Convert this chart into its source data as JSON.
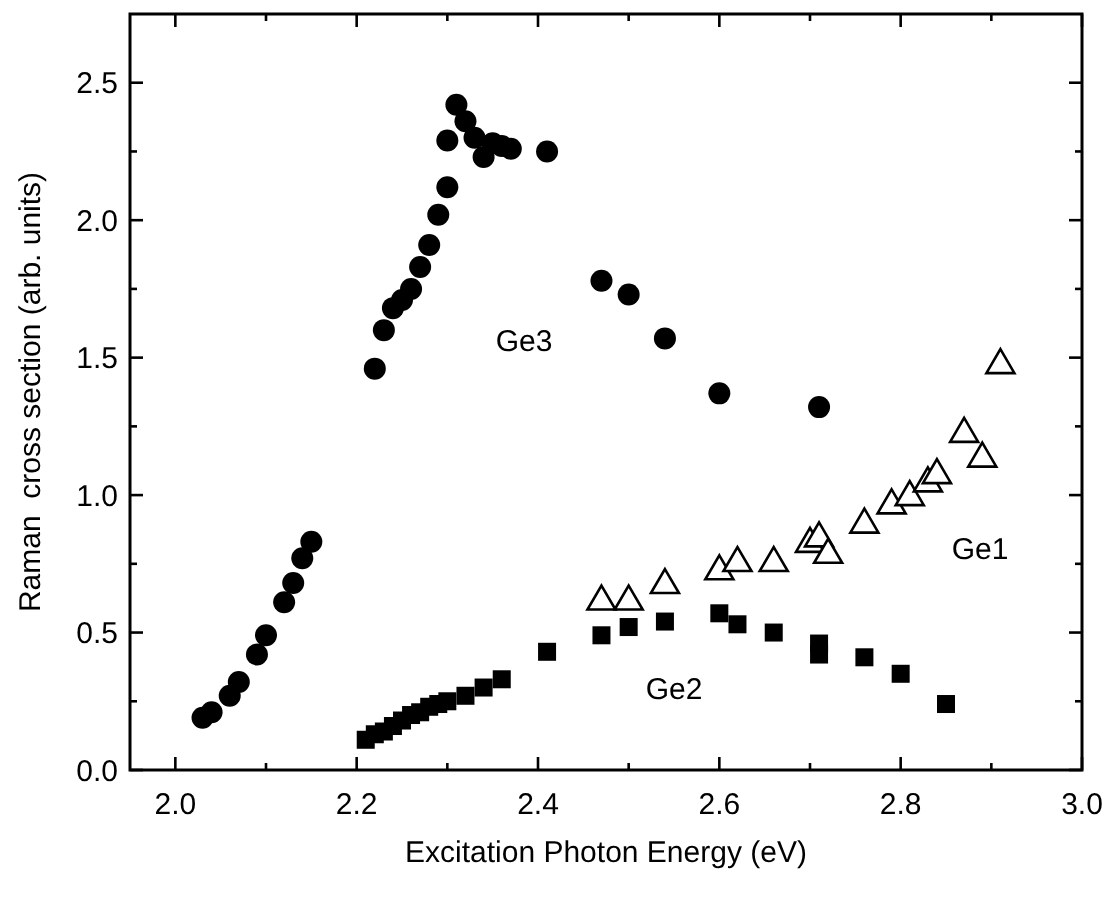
{
  "chart_data": {
    "type": "scatter",
    "xlabel": "Excitation Photon Energy (eV)",
    "ylabel": "Raman  cross section (arb. units)",
    "xlim": [
      1.95,
      3.0
    ],
    "ylim": [
      0,
      2.75
    ],
    "xticks": [
      {
        "value": 2.0,
        "label": "2.0"
      },
      {
        "value": 2.1,
        "label": null
      },
      {
        "value": 2.2,
        "label": "2.2"
      },
      {
        "value": 2.3,
        "label": null
      },
      {
        "value": 2.4,
        "label": "2.4"
      },
      {
        "value": 2.5,
        "label": null
      },
      {
        "value": 2.6,
        "label": "2.6"
      },
      {
        "value": 2.7,
        "label": null
      },
      {
        "value": 2.8,
        "label": "2.8"
      },
      {
        "value": 2.9,
        "label": null
      },
      {
        "value": 3.0,
        "label": "3.0"
      }
    ],
    "yticks": [
      {
        "value": 0,
        "label": "0.0"
      },
      {
        "value": 0.25,
        "label": null
      },
      {
        "value": 0.5,
        "label": "0.5"
      },
      {
        "value": 0.75,
        "label": null
      },
      {
        "value": 1.0,
        "label": "1.0"
      },
      {
        "value": 1.25,
        "label": null
      },
      {
        "value": 1.5,
        "label": "1.5"
      },
      {
        "value": 1.75,
        "label": null
      },
      {
        "value": 2.0,
        "label": "2.0"
      },
      {
        "value": 2.25,
        "label": null
      },
      {
        "value": 2.5,
        "label": "2.5"
      }
    ],
    "grid": false,
    "series": [
      {
        "name": "Ge3",
        "color": "#000000",
        "marker": "circle",
        "x": [
          2.03,
          2.04,
          2.06,
          2.07,
          2.09,
          2.1,
          2.12,
          2.13,
          2.14,
          2.15,
          2.22,
          2.23,
          2.24,
          2.25,
          2.26,
          2.27,
          2.28,
          2.29,
          2.3,
          2.3,
          2.31,
          2.32,
          2.33,
          2.34,
          2.35,
          2.36,
          2.37,
          2.41,
          2.47,
          2.5,
          2.54,
          2.6,
          2.71
        ],
        "values": [
          0.19,
          0.21,
          0.27,
          0.32,
          0.42,
          0.49,
          0.61,
          0.68,
          0.77,
          0.83,
          1.46,
          1.6,
          1.68,
          1.71,
          1.75,
          1.83,
          1.91,
          2.02,
          2.12,
          2.29,
          2.42,
          2.36,
          2.3,
          2.23,
          2.28,
          2.27,
          2.26,
          2.25,
          1.78,
          1.73,
          1.57,
          1.37,
          1.32
        ]
      },
      {
        "name": "Ge2",
        "color": "#000000",
        "marker": "square",
        "x": [
          2.21,
          2.22,
          2.23,
          2.24,
          2.25,
          2.26,
          2.27,
          2.28,
          2.29,
          2.3,
          2.32,
          2.34,
          2.36,
          2.41,
          2.47,
          2.5,
          2.54,
          2.6,
          2.62,
          2.66,
          2.71,
          2.71,
          2.76,
          2.8,
          2.85
        ],
        "values": [
          0.11,
          0.13,
          0.14,
          0.16,
          0.18,
          0.2,
          0.21,
          0.23,
          0.24,
          0.25,
          0.27,
          0.3,
          0.33,
          0.43,
          0.49,
          0.52,
          0.54,
          0.57,
          0.53,
          0.5,
          0.46,
          0.42,
          0.41,
          0.35,
          0.24
        ]
      },
      {
        "name": "Ge1",
        "color": "#000000",
        "marker": "triangle",
        "x": [
          2.47,
          2.5,
          2.54,
          2.6,
          2.62,
          2.66,
          2.7,
          2.71,
          2.72,
          2.76,
          2.79,
          2.81,
          2.83,
          2.84,
          2.87,
          2.89,
          2.91
        ],
        "values": [
          0.62,
          0.62,
          0.68,
          0.73,
          0.76,
          0.76,
          0.83,
          0.85,
          0.79,
          0.9,
          0.97,
          1.0,
          1.05,
          1.08,
          1.23,
          1.14,
          1.48
        ]
      }
    ]
  }
}
